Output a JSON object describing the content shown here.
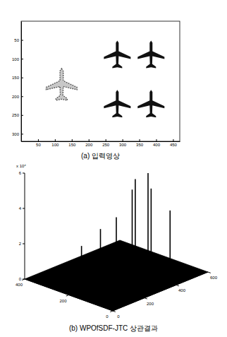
{
  "chart_data": [
    {
      "type": "image",
      "title": "(a) 입력영상",
      "xlim": [
        0,
        470
      ],
      "ylim": [
        0,
        320
      ],
      "xticks": [
        50,
        100,
        150,
        200,
        250,
        300,
        350,
        400,
        450
      ],
      "yticks": [
        50,
        100,
        150,
        200,
        250,
        300
      ]
    },
    {
      "type": "stem3d",
      "title": "(b) WPOfSDF-JTC 상관결과",
      "annotation": "x 10⁴",
      "x": [
        150,
        200,
        300,
        350,
        400,
        450,
        500,
        500
      ],
      "y": [
        250,
        200,
        200,
        150,
        200,
        150,
        200,
        100
      ],
      "values": [
        2.0,
        3.0,
        3.3,
        5.5,
        4.5,
        4.6,
        5.2,
        3.4
      ],
      "color": "#000000",
      "xlim": [
        0,
        600
      ],
      "ylim": [
        0,
        400
      ],
      "zlim": [
        0,
        6
      ],
      "xticks": [
        0,
        200,
        400,
        600
      ],
      "yticks": [
        0,
        200,
        400
      ],
      "zticks": [
        0,
        2,
        4,
        6
      ]
    }
  ]
}
